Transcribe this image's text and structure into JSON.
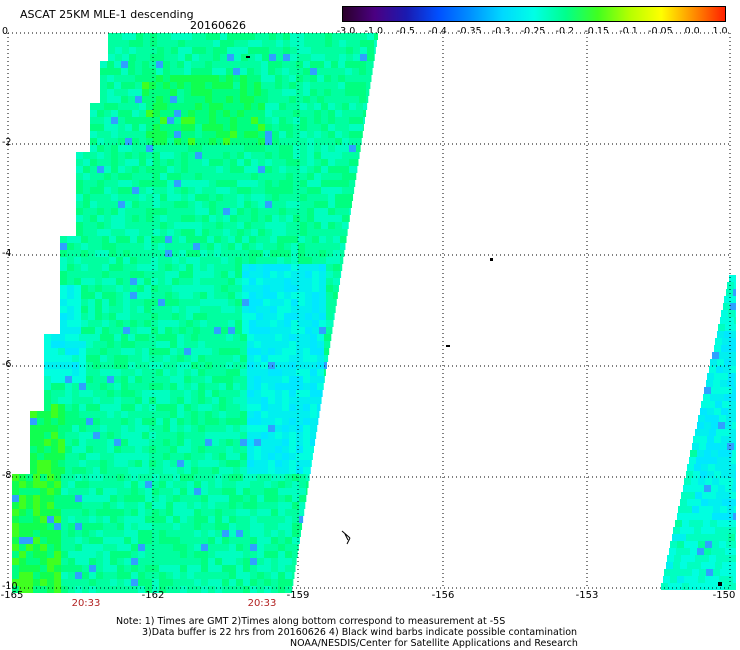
{
  "title": "ASCAT 25KM MLE-1 descending",
  "date": "20160626",
  "colorbar": {
    "labels": [
      "-3.0",
      "-1.0",
      "-0.5",
      "-0.4",
      "-0.35",
      "-0.3",
      "-0.25",
      "-0.2",
      "-0.15",
      "-0.1",
      "-0.05",
      "0.0",
      "1.0"
    ],
    "colors": [
      "#2a002a",
      "#4b0082",
      "#1a1ab0",
      "#0050ff",
      "#0090ff",
      "#00d8ff",
      "#00ffe6",
      "#00ff8c",
      "#40ff20",
      "#b4ff00",
      "#ffff00",
      "#ff9000",
      "#ff2000"
    ]
  },
  "axes": {
    "y_labels": [
      "0",
      "-2",
      "-4",
      "-6",
      "-8",
      "-10"
    ],
    "x_labels": [
      "-165",
      "-162",
      "-159",
      "-156",
      "-153",
      "-150"
    ]
  },
  "times": [
    "20:33",
    "20:33"
  ],
  "notes": [
    "Note: 1) Times are GMT 2)Times along bottom correspond to measurement at -5S",
    "3)Data buffer is 22 hrs from 20160626 4) Black wind barbs indicate possible contamination",
    "NOAA/NESDIS/Center for Satellite Applications and Research"
  ]
}
